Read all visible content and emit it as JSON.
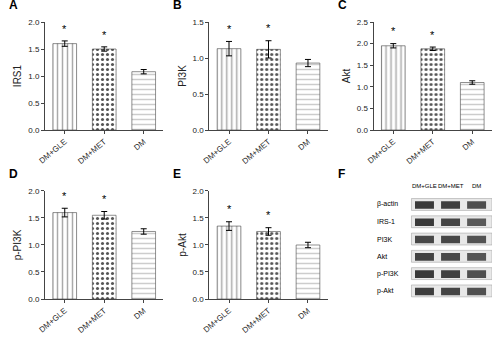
{
  "chart_data": [
    {
      "type": "bar",
      "title": "A",
      "ylabel": "IRS1",
      "categories": [
        "DM+GLE",
        "DM+MET",
        "DM"
      ],
      "values": [
        1.6,
        1.5,
        1.08
      ],
      "errors": [
        0.05,
        0.04,
        0.04
      ],
      "colors": [
        "#aaaaaa",
        "#555555",
        "#cccccc"
      ],
      "ylim": [
        0,
        2.0
      ],
      "yticks": [
        {
          "value": 0.0,
          "label": "0.0"
        },
        0.5,
        {
          "value": 1.0,
          "label": "1.0"
        },
        1.5,
        {
          "value": 2.0,
          "label": "2.0"
        }
      ],
      "grid": false,
      "annotations": [
        {
          "x": "DM+GLE",
          "text": "*"
        },
        {
          "x": "DM+MET",
          "text": "*"
        }
      ]
    },
    {
      "type": "bar",
      "title": "B",
      "ylabel": "PI3K",
      "categories": [
        "DM+GLE",
        "DM+MET",
        "DM"
      ],
      "values": [
        1.13,
        1.12,
        0.93
      ],
      "errors": [
        0.1,
        0.12,
        0.05
      ],
      "colors": [
        "#aaaaaa",
        "#555555",
        "#cccccc"
      ],
      "ylim": [
        0,
        1.5
      ],
      "yticks": [
        {
          "value": 0.0,
          "label": "0.0"
        },
        0.5,
        {
          "value": 1.0,
          "label": "1.0"
        },
        1.5
      ],
      "grid": false,
      "annotations": [
        {
          "x": "DM+GLE",
          "text": "*"
        },
        {
          "x": "DM+MET",
          "text": "*"
        }
      ]
    },
    {
      "type": "bar",
      "title": "C",
      "ylabel": "Akt",
      "categories": [
        "DM+GLE",
        "DM+MET",
        "DM"
      ],
      "values": [
        1.95,
        1.88,
        1.1
      ],
      "errors": [
        0.05,
        0.04,
        0.04
      ],
      "colors": [
        "#aaaaaa",
        "#555555",
        "#cccccc"
      ],
      "ylim": [
        0,
        2.5
      ],
      "yticks": [
        {
          "value": 0.0,
          "label": "0.0"
        },
        0.5,
        {
          "value": 1.0,
          "label": "1.0"
        },
        1.5,
        {
          "value": 2.0,
          "label": "2.0"
        },
        2.5
      ],
      "grid": false,
      "annotations": [
        {
          "x": "DM+GLE",
          "text": "*"
        },
        {
          "x": "DM+MET",
          "text": "*"
        }
      ]
    },
    {
      "type": "bar",
      "title": "D",
      "ylabel": "p-PI3K",
      "categories": [
        "DM+GLE",
        "DM+MET",
        "DM"
      ],
      "values": [
        1.6,
        1.55,
        1.25
      ],
      "errors": [
        0.08,
        0.07,
        0.05
      ],
      "colors": [
        "#aaaaaa",
        "#555555",
        "#cccccc"
      ],
      "ylim": [
        0,
        2.0
      ],
      "yticks": [
        {
          "value": 0.0,
          "label": "0.0"
        },
        0.5,
        {
          "value": 1.0,
          "label": "1.0"
        },
        1.5,
        {
          "value": 2.0,
          "label": "2.0"
        }
      ],
      "grid": false,
      "annotations": [
        {
          "x": "DM+GLE",
          "text": "*"
        },
        {
          "x": "DM+MET",
          "text": "*"
        }
      ]
    },
    {
      "type": "bar",
      "title": "E",
      "ylabel": "p-Akt",
      "categories": [
        "DM+GLE",
        "DM+MET",
        "DM"
      ],
      "values": [
        1.35,
        1.25,
        1.0
      ],
      "errors": [
        0.08,
        0.07,
        0.05
      ],
      "colors": [
        "#aaaaaa",
        "#555555",
        "#cccccc"
      ],
      "ylim": [
        0,
        2.0
      ],
      "yticks": [
        {
          "value": 0.0,
          "label": "0.0"
        },
        0.5,
        {
          "value": 1.0,
          "label": "1.0"
        },
        1.5,
        {
          "value": 2.0,
          "label": "2.0"
        }
      ],
      "grid": false,
      "annotations": [
        {
          "x": "DM+GLE",
          "text": "*"
        },
        {
          "x": "DM+MET",
          "text": "*"
        }
      ]
    },
    {
      "type": "blot",
      "title": "F",
      "categories": [
        "DM+GLE",
        "DM+MET",
        "DM"
      ],
      "series": [
        {
          "name": "β-actin",
          "colors": [
            "#1a1a1a",
            "#222222",
            "#333333"
          ]
        },
        {
          "name": "IRS-1",
          "colors": [
            "#1a1a1a",
            "#282828",
            "#404040"
          ]
        },
        {
          "name": "PI3K",
          "colors": [
            "#2a2a2a",
            "#2a2a2a",
            "#383838"
          ]
        },
        {
          "name": "Akt",
          "colors": [
            "#252525",
            "#2d2d2d",
            "#3a3a3a"
          ]
        },
        {
          "name": "p-PI3K",
          "colors": [
            "#1a1a1a",
            "#222222",
            "#353535"
          ]
        },
        {
          "name": "p-Akt",
          "colors": [
            "#1e1e1e",
            "#282828",
            "#353535"
          ]
        }
      ]
    }
  ]
}
